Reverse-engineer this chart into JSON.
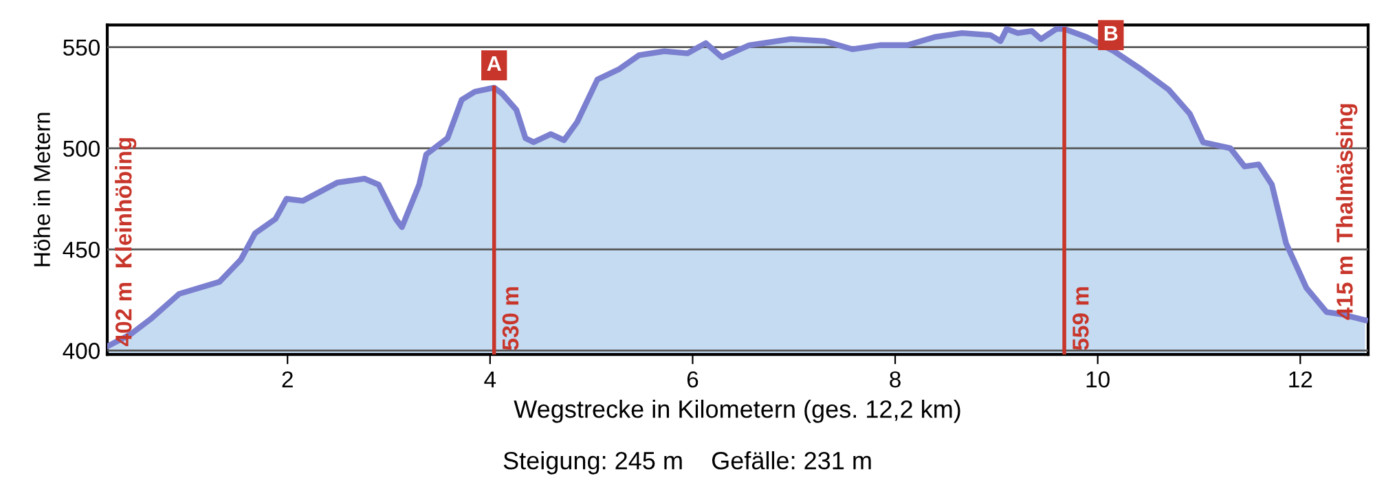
{
  "chart_data": {
    "type": "area",
    "xlabel": "Wegstrecke in Kilometern (ges. 12,2 km)",
    "ylabel": "Höhe in Metern",
    "xlim": [
      0.22,
      12.67
    ],
    "xticks": [
      2,
      4,
      6,
      8,
      10,
      12
    ],
    "ylim": [
      398,
      561
    ],
    "yticks": [
      400,
      450,
      500,
      550
    ],
    "grid": "y",
    "series": [
      {
        "color": "#7b7fcf",
        "x": [
          0.22,
          0.45,
          0.66,
          0.93,
          1.2,
          1.33,
          1.54,
          1.68,
          1.88,
          1.99,
          2.15,
          2.49,
          2.76,
          2.9,
          3.07,
          3.13,
          3.3,
          3.37,
          3.58,
          3.72,
          3.85,
          4.04,
          4.12,
          4.26,
          4.35,
          4.43,
          4.6,
          4.73,
          4.86,
          5.06,
          5.27,
          5.47,
          5.72,
          5.95,
          6.13,
          6.29,
          6.56,
          6.97,
          7.3,
          7.58,
          7.85,
          8.12,
          8.39,
          8.66,
          8.94,
          9.04,
          9.1,
          9.21,
          9.35,
          9.44,
          9.59,
          9.67,
          9.89,
          10.16,
          10.43,
          10.7,
          10.91,
          11.04,
          11.31,
          11.45,
          11.59,
          11.72,
          11.86,
          12.06,
          12.26,
          12.4,
          12.64
        ],
        "values": [
          402,
          408,
          416,
          428,
          432,
          434,
          445,
          458,
          465,
          475,
          474,
          483,
          485,
          482,
          465,
          461,
          482,
          497,
          505,
          524,
          528,
          530,
          527,
          519,
          505,
          503,
          507,
          504,
          513,
          534,
          539,
          546,
          548,
          547,
          552,
          545,
          551,
          554,
          553,
          549,
          551,
          551,
          555,
          557,
          556,
          553,
          559,
          557,
          558,
          554,
          559,
          559,
          555,
          548,
          539,
          529,
          517,
          503,
          500,
          491,
          492,
          482,
          453,
          431,
          419,
          418,
          415
        ]
      }
    ],
    "ref_lines": [
      {
        "axis": "x",
        "value": 4.04,
        "label": "530 m",
        "color": "#c8362b"
      },
      {
        "axis": "x",
        "value": 9.67,
        "label": "559 m",
        "color": "#c8362b"
      }
    ],
    "annotations": [
      {
        "text": "402 m  Kleinhöbing",
        "x": 0.22,
        "y": 402
      },
      {
        "text": "A",
        "x": 4.04,
        "y": 541
      },
      {
        "text": "B",
        "x": 10.13,
        "y": 556
      },
      {
        "text": "415 m  Thalmässing",
        "x": 12.64,
        "y": 415
      },
      "Steigung: 245 m    Gefälle: 231 m"
    ]
  }
}
